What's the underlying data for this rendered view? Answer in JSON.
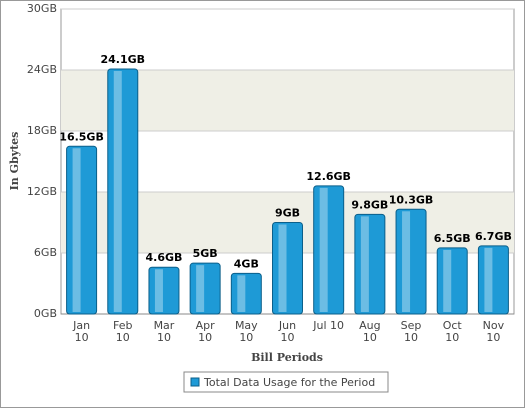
{
  "chart_data": {
    "type": "bar",
    "y_label": "In Gbytes",
    "x_label": "Bill Periods",
    "categories": [
      "Jan 10",
      "Feb 10",
      "Mar 10",
      "Apr 10",
      "May 10",
      "Jun 10",
      "Jul 10",
      "Aug 10",
      "Sep 10",
      "Oct 10",
      "Nov 10"
    ],
    "series": [
      {
        "name": "Total Data Usage for the Period",
        "color": "#1e9ad6",
        "values": [
          16.5,
          24.1,
          4.6,
          5,
          4,
          9,
          12.6,
          9.8,
          10.3,
          6.5,
          6.7
        ],
        "value_labels": [
          "16.5GB",
          "24.1GB",
          "4.6GB",
          "5GB",
          "4GB",
          "9GB",
          "12.6GB",
          "9.8GB",
          "10.3GB",
          "6.5GB",
          "6.7GB"
        ]
      }
    ],
    "ylim": [
      0,
      30
    ],
    "yticks": [
      {
        "value": 0,
        "label": "0GB"
      },
      {
        "value": 6,
        "label": "6GB"
      },
      {
        "value": 12,
        "label": "12GB"
      },
      {
        "value": 18,
        "label": "18GB"
      },
      {
        "value": 24,
        "label": "24GB"
      },
      {
        "value": 30,
        "label": "30GB"
      }
    ],
    "grid": true,
    "legend": "bottom"
  }
}
